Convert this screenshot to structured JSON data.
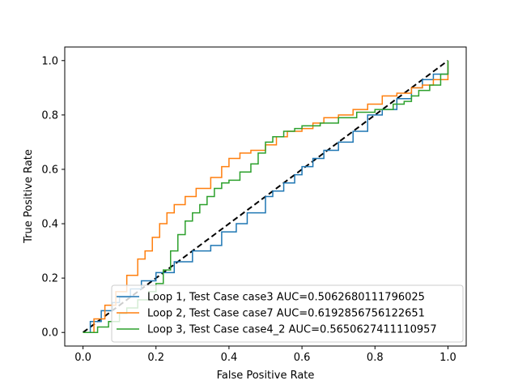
{
  "chart_data": {
    "type": "line",
    "title": "",
    "xlabel": "False Positive Rate",
    "ylabel": "True Positive Rate",
    "xlim": [
      -0.05,
      1.05
    ],
    "ylim": [
      -0.05,
      1.05
    ],
    "xticks": [
      "0.0",
      "0.2",
      "0.4",
      "0.6",
      "0.8",
      "1.0"
    ],
    "yticks": [
      "0.0",
      "0.2",
      "0.4",
      "0.6",
      "0.8",
      "1.0"
    ],
    "grid": false,
    "legend_placement": "lower-right",
    "diagonal": {
      "style": "dashed",
      "color": "#000000",
      "x": [
        0,
        1
      ],
      "y": [
        0,
        1
      ]
    },
    "series": [
      {
        "name": "Loop 1, Test Case case3 AUC=0.5062680111796025",
        "color": "#1f77b4",
        "x": [
          0,
          0.02,
          0.05,
          0.08,
          0.1,
          0.13,
          0.16,
          0.2,
          0.25,
          0.3,
          0.35,
          0.38,
          0.42,
          0.45,
          0.5,
          0.52,
          0.55,
          0.58,
          0.6,
          0.63,
          0.66,
          0.7,
          0.74,
          0.78,
          0.82,
          0.86,
          0.9,
          0.93,
          0.96,
          1.0
        ],
        "y": [
          0,
          0.04,
          0.08,
          0.11,
          0.13,
          0.16,
          0.19,
          0.22,
          0.26,
          0.3,
          0.32,
          0.37,
          0.4,
          0.44,
          0.5,
          0.52,
          0.55,
          0.58,
          0.61,
          0.64,
          0.67,
          0.7,
          0.74,
          0.8,
          0.82,
          0.86,
          0.9,
          0.93,
          0.95,
          1.0
        ]
      },
      {
        "name": "Loop 2, Test Case case7 AUC=0.6192856756122651",
        "color": "#ff7f0e",
        "x": [
          0,
          0.03,
          0.06,
          0.09,
          0.12,
          0.15,
          0.17,
          0.19,
          0.21,
          0.23,
          0.25,
          0.28,
          0.31,
          0.35,
          0.38,
          0.4,
          0.43,
          0.46,
          0.5,
          0.53,
          0.56,
          0.6,
          0.63,
          0.66,
          0.7,
          0.74,
          0.78,
          0.82,
          0.86,
          0.9,
          0.93,
          0.96,
          1.0
        ],
        "y": [
          0,
          0.05,
          0.1,
          0.15,
          0.21,
          0.27,
          0.3,
          0.35,
          0.4,
          0.44,
          0.47,
          0.5,
          0.53,
          0.57,
          0.61,
          0.64,
          0.66,
          0.67,
          0.69,
          0.72,
          0.74,
          0.75,
          0.77,
          0.79,
          0.8,
          0.82,
          0.84,
          0.87,
          0.88,
          0.9,
          0.91,
          0.93,
          1.0
        ]
      },
      {
        "name": "Loop 3, Test Case case4_2 AUC=0.5650627411110957",
        "color": "#2ca02c",
        "x": [
          0,
          0.02,
          0.04,
          0.07,
          0.1,
          0.12,
          0.15,
          0.18,
          0.2,
          0.22,
          0.24,
          0.26,
          0.28,
          0.3,
          0.32,
          0.34,
          0.36,
          0.38,
          0.4,
          0.43,
          0.46,
          0.48,
          0.5,
          0.52,
          0.55,
          0.58,
          0.6,
          0.65,
          0.7,
          0.75,
          0.8,
          0.85,
          0.88,
          0.9,
          0.92,
          0.95,
          0.98,
          1.0
        ],
        "y": [
          0,
          0.0,
          0.02,
          0.04,
          0.07,
          0.09,
          0.12,
          0.15,
          0.18,
          0.23,
          0.3,
          0.36,
          0.41,
          0.44,
          0.47,
          0.5,
          0.53,
          0.55,
          0.56,
          0.59,
          0.62,
          0.66,
          0.7,
          0.72,
          0.74,
          0.75,
          0.76,
          0.77,
          0.79,
          0.81,
          0.82,
          0.84,
          0.85,
          0.87,
          0.89,
          0.91,
          0.95,
          1.0
        ]
      }
    ]
  }
}
